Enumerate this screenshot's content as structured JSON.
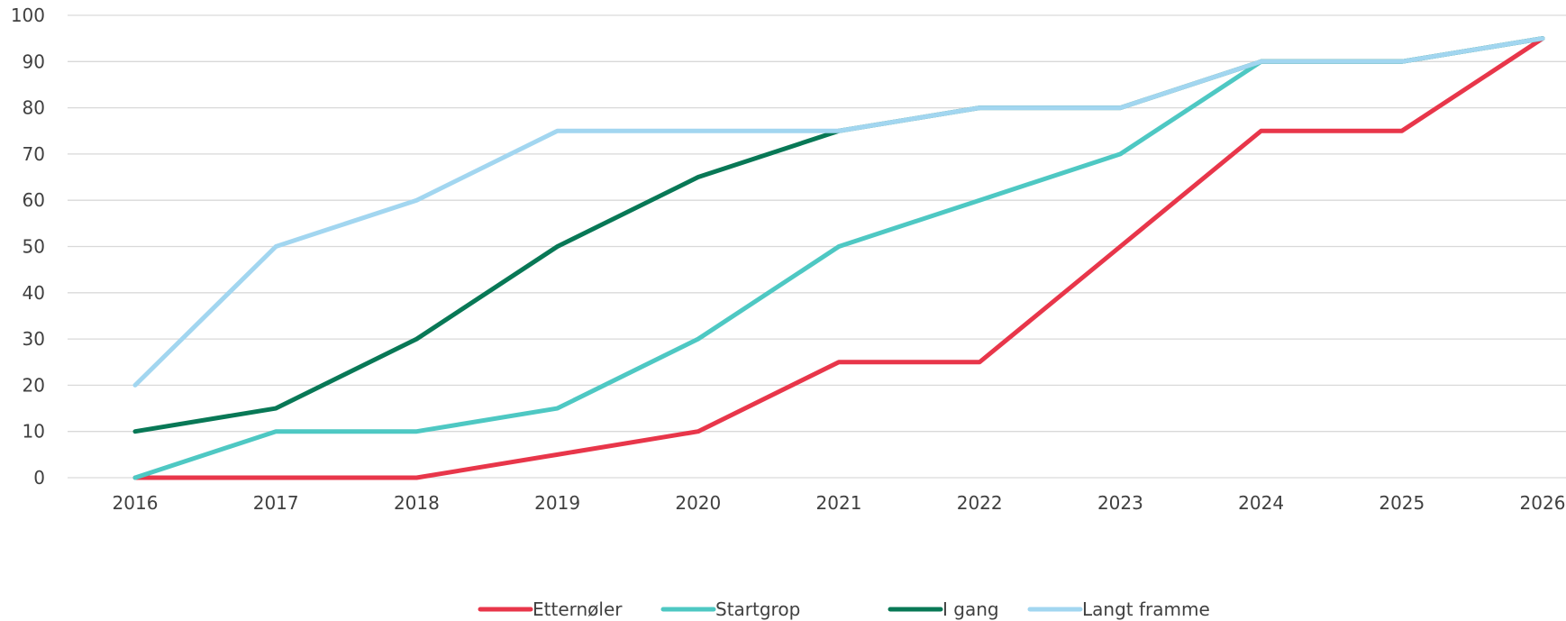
{
  "chart_data": {
    "type": "line",
    "title": "",
    "xlabel": "",
    "ylabel": "",
    "categories": [
      "2016",
      "2017",
      "2018",
      "2019",
      "2020",
      "2021",
      "2022",
      "2023",
      "2024",
      "2025",
      "2026"
    ],
    "ylim": [
      0,
      100
    ],
    "yticks": [
      0,
      10,
      20,
      30,
      40,
      50,
      60,
      70,
      80,
      90,
      100
    ],
    "grid": true,
    "legend_position": "bottom",
    "series": [
      {
        "name": "Etternøler",
        "color": "#e8364a",
        "values": [
          0,
          0,
          0,
          5,
          10,
          25,
          25,
          50,
          75,
          75,
          95
        ]
      },
      {
        "name": "Startgrop",
        "color": "#4ec8c3",
        "values": [
          0,
          10,
          10,
          15,
          30,
          50,
          60,
          70,
          90,
          90,
          95
        ]
      },
      {
        "name": "I gang",
        "color": "#087856",
        "values": [
          10,
          15,
          30,
          50,
          65,
          75,
          80,
          80,
          90,
          90,
          95
        ]
      },
      {
        "name": "Langt framme",
        "color": "#a2d6f0",
        "values": [
          20,
          50,
          60,
          75,
          75,
          75,
          80,
          80,
          90,
          90,
          95
        ]
      }
    ]
  }
}
